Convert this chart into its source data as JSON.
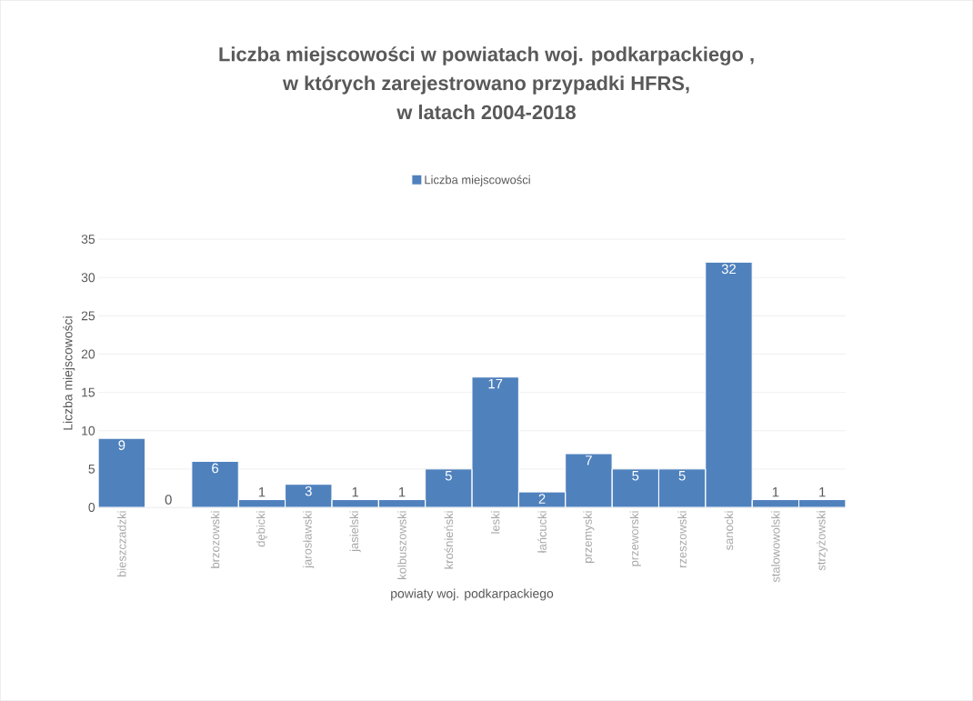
{
  "chart_data": {
    "type": "bar",
    "title": "Liczba miejscowości w powiatach woj. podkarpackiego ,\nw których zarejestrowano przypadki HFRS,\nw latach 2004-2018",
    "xlabel": "powiaty woj. podkarpackiego",
    "ylabel": "Liczba miejscowości",
    "categories": [
      "bieszczadzki",
      null,
      "brzozowski",
      "dębicki",
      "jarosławski",
      "jasielski",
      "kolbuszowski",
      "krośnieński",
      "leski",
      "łańcucki",
      "przemyski",
      "przeworski",
      "rzeszowski",
      "sanocki",
      "stalowowolski",
      "strzyżowski"
    ],
    "series": [
      {
        "name": "Liczba miejscowości",
        "color": "#4f81bd",
        "values": [
          9,
          0,
          6,
          1,
          3,
          1,
          1,
          5,
          17,
          2,
          7,
          5,
          5,
          32,
          1,
          1
        ]
      }
    ],
    "ylim": [
      0,
      35
    ],
    "yticks": [
      0,
      5,
      10,
      15,
      20,
      25,
      30,
      35
    ],
    "grid": "y",
    "legend": "top",
    "data_labels": true
  }
}
